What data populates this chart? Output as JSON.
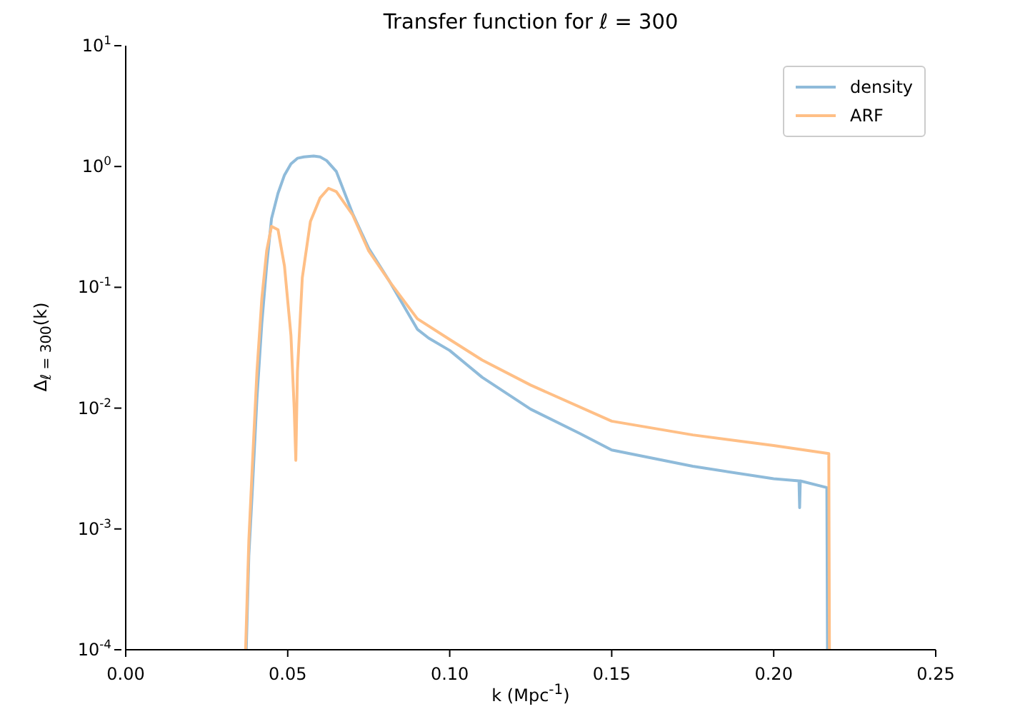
{
  "chart_data": {
    "type": "line",
    "title": "Transfer function for ℓ = 300",
    "xlabel": "k (Mpc$^{-1}$)",
    "ylabel": "Δ$_{ℓ = 300}$(k)",
    "log": "y",
    "legend": "top right",
    "xlim": [
      0,
      0.25
    ],
    "xticks": [
      {
        "value": 0,
        "label": "0.00"
      },
      {
        "value": 0.05,
        "label": "0.05"
      },
      {
        "value": 0.1,
        "label": "0.10"
      },
      {
        "value": 0.15,
        "label": "0.15"
      },
      {
        "value": 0.2,
        "label": "0.20"
      },
      {
        "value": 0.25,
        "label": "0.25"
      }
    ],
    "ylim": [
      0.0001,
      10
    ],
    "yticks": [
      {
        "value": 0.0001,
        "label": "10$^{-4}$"
      },
      {
        "value": 0.001,
        "label": "10$^{-3}$"
      },
      {
        "value": 0.01,
        "label": "10$^{-2}$"
      },
      {
        "value": 0.1,
        "label": "10$^{-1}$"
      },
      {
        "value": 1,
        "label": "10$^{0}$"
      },
      {
        "value": 10,
        "label": "10$^{1}$"
      }
    ],
    "series": [
      {
        "name": "density",
        "color": "#8fbbda",
        "x": [
          0.0372,
          0.038,
          0.039,
          0.0405,
          0.042,
          0.0435,
          0.045,
          0.047,
          0.049,
          0.051,
          0.053,
          0.055,
          0.058,
          0.06,
          0.062,
          0.065,
          0.07,
          0.075,
          0.0816,
          0.09,
          0.0935,
          0.1,
          0.11,
          0.125,
          0.14,
          0.15,
          0.175,
          0.2,
          0.2078,
          0.208,
          0.2082,
          0.2164,
          0.2166
        ],
        "values": [
          0.0001,
          0.0006,
          0.0019,
          0.012,
          0.05,
          0.15,
          0.37,
          0.6,
          0.85,
          1.05,
          1.17,
          1.2,
          1.22,
          1.2,
          1.12,
          0.91,
          0.41,
          0.21,
          0.11,
          0.045,
          0.038,
          0.03,
          0.018,
          0.0098,
          0.0062,
          0.0045,
          0.0033,
          0.0026,
          0.0025,
          0.0015,
          0.0025,
          0.0022,
          0.0001
        ]
      },
      {
        "name": "ARF",
        "color": "#ffbf86",
        "x": [
          0.037,
          0.038,
          0.039,
          0.0405,
          0.042,
          0.0435,
          0.045,
          0.047,
          0.049,
          0.051,
          0.052,
          0.0525,
          0.053,
          0.0545,
          0.057,
          0.06,
          0.0626,
          0.065,
          0.07,
          0.075,
          0.0816,
          0.09,
          0.1,
          0.11,
          0.125,
          0.15,
          0.175,
          0.2,
          0.217,
          0.2172
        ],
        "values": [
          0.0001,
          0.0008,
          0.003,
          0.02,
          0.08,
          0.2,
          0.32,
          0.3,
          0.15,
          0.04,
          0.01,
          0.0037,
          0.02,
          0.12,
          0.35,
          0.55,
          0.66,
          0.62,
          0.4,
          0.2,
          0.11,
          0.055,
          0.037,
          0.025,
          0.0155,
          0.0078,
          0.006,
          0.0049,
          0.0042,
          0.0001
        ]
      }
    ]
  }
}
